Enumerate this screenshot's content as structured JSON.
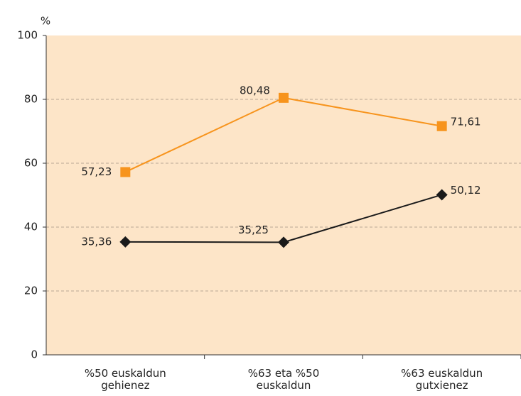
{
  "chart_data": {
    "type": "line",
    "y_label": "%",
    "categories": [
      [
        "%50 euskaldun",
        "gehienez"
      ],
      [
        "%63 eta %50",
        "euskaldun"
      ],
      [
        "%63 euskaldun",
        "gutxienez"
      ]
    ],
    "series": [
      {
        "color": "#f7941d",
        "marker": "square",
        "values": [
          57.23,
          80.48,
          71.61
        ],
        "value_labels": [
          "57,23",
          "80,48",
          "71,61"
        ]
      },
      {
        "color": "#1a1a1a",
        "marker": "diamond",
        "values": [
          35.36,
          35.25,
          50.12
        ],
        "value_labels": [
          "35,36",
          "35,25",
          "50,12"
        ]
      }
    ],
    "ylim": [
      0,
      100
    ],
    "yticks": [
      0,
      20,
      40,
      60,
      80,
      100
    ],
    "grid": true,
    "background": "#fde5c8"
  }
}
